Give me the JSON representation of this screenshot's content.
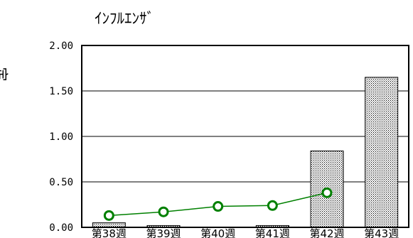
{
  "chart_data": {
    "type": "bar",
    "title": "ｲﾝﾌﾙｴﾝｻﾞ",
    "xlabel": "",
    "ylabel": "定点当たり患者数",
    "categories": [
      "第38週",
      "第39週",
      "第40週",
      "第41週",
      "第42週",
      "第43週"
    ],
    "ylim": [
      0,
      2.0
    ],
    "yticks": [
      "0.00",
      "0.50",
      "1.00",
      "1.50",
      "2.00"
    ],
    "grid": true,
    "legend": "none",
    "series": [
      {
        "type": "bar",
        "values": [
          0.05,
          0.02,
          0.0,
          0.02,
          0.84,
          1.65
        ],
        "color": "#000000",
        "pattern": "dotted"
      },
      {
        "type": "line",
        "values": [
          0.13,
          0.17,
          0.23,
          0.24,
          0.38,
          null
        ],
        "color": "#008000"
      }
    ]
  }
}
